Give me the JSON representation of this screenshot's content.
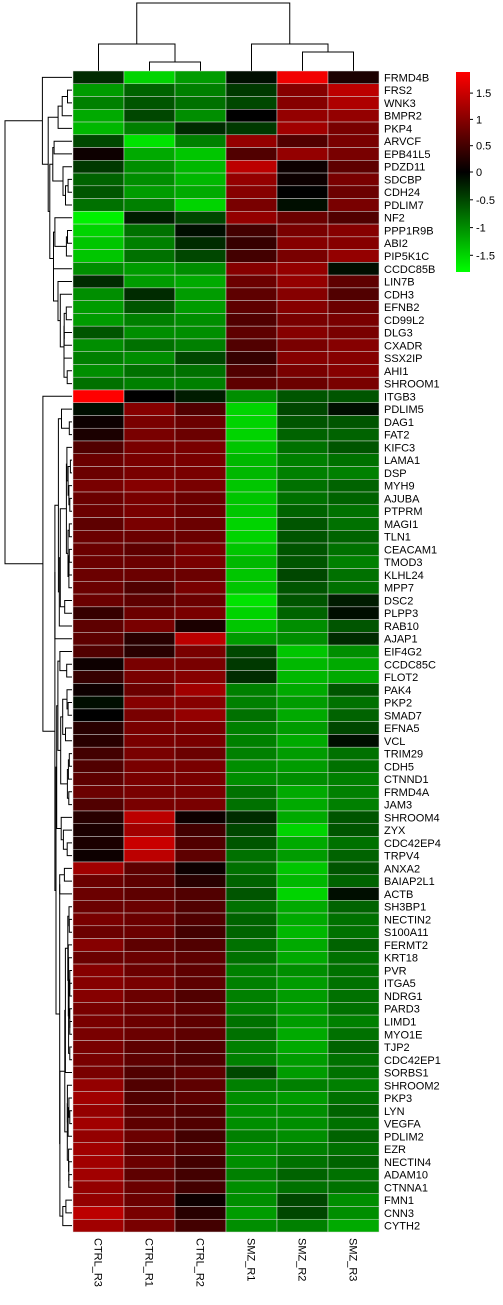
{
  "chart_data": {
    "type": "heatmap",
    "columns": [
      "CTRL_R3",
      "CTRL_R1",
      "CTRL_R2",
      "SMZ_R1",
      "SMZ_R2",
      "SMZ_R3"
    ],
    "rows": [
      "FRMD4B",
      "FRS2",
      "WNK3",
      "BMPR2",
      "PKP4",
      "ARVCF",
      "EPB41L5",
      "PDZD11",
      "SDCBP",
      "CDH24",
      "PDLIM7",
      "NF2",
      "PPP1R9B",
      "ABI2",
      "PIP5K1C",
      "CCDC85B",
      "LIN7B",
      "CDH3",
      "EFNB2",
      "CD99L2",
      "DLG3",
      "CXADR",
      "SSX2IP",
      "AHI1",
      "SHROOM1",
      "ITGB3",
      "PDLIM5",
      "DAG1",
      "FAT2",
      "KIFC3",
      "LAMA1",
      "DSP",
      "MYH9",
      "AJUBA",
      "PTPRM",
      "MAGI1",
      "TLN1",
      "CEACAM1",
      "TMOD3",
      "KLHL24",
      "MPP7",
      "DSC2",
      "PLPP3",
      "RAB10",
      "AJAP1",
      "EIF4G2",
      "CCDC85C",
      "FLOT2",
      "PAK4",
      "PKP2",
      "SMAD7",
      "EFNA5",
      "VCL",
      "TRIM29",
      "CDH5",
      "CTNND1",
      "FRMD4A",
      "JAM3",
      "SHROOM4",
      "ZYX",
      "CDC42EP4",
      "TRPV4",
      "ANXA2",
      "BAIAP2L1",
      "ACTB",
      "SH3BP1",
      "NECTIN2",
      "S100A11",
      "FERMT2",
      "KRT18",
      "PVR",
      "ITGA5",
      "NDRG1",
      "PARD3",
      "LIMD1",
      "MYO1E",
      "TJP2",
      "CDC42EP1",
      "SORBS1",
      "SHROOM2",
      "PKP3",
      "LYN",
      "VEGFA",
      "PDLIM2",
      "EZR",
      "NECTIN4",
      "ADAM10",
      "CTNNA1",
      "FMN1",
      "CNN3",
      "CYTH2"
    ],
    "values": [
      [
        -0.3,
        -1.5,
        -1.1,
        -0.1,
        1.8,
        0.2
      ],
      [
        -1.1,
        -0.7,
        -0.9,
        -0.4,
        1.0,
        1.4
      ],
      [
        -0.9,
        -0.6,
        -0.8,
        -0.5,
        1.0,
        1.3
      ],
      [
        -1.2,
        -0.5,
        -1.0,
        0.0,
        1.1,
        1.1
      ],
      [
        -1.3,
        -0.9,
        -0.3,
        -0.4,
        1.2,
        0.9
      ],
      [
        -0.5,
        -1.6,
        -0.9,
        1.1,
        0.6,
        0.9
      ],
      [
        0.1,
        -1.2,
        -1.4,
        0.6,
        1.1,
        0.9
      ],
      [
        -0.4,
        -1.0,
        -1.3,
        1.4,
        0.1,
        0.7
      ],
      [
        -0.7,
        -1.0,
        -1.3,
        1.1,
        0.1,
        0.9
      ],
      [
        -0.6,
        -1.1,
        -1.2,
        1.0,
        0.0,
        0.8
      ],
      [
        -0.8,
        -0.9,
        -1.5,
        0.9,
        -0.1,
        0.9
      ],
      [
        -1.7,
        -0.2,
        -0.5,
        1.1,
        0.8,
        0.6
      ],
      [
        -1.5,
        -0.8,
        -0.1,
        0.5,
        0.9,
        1.0
      ],
      [
        -1.4,
        -0.9,
        -0.3,
        0.4,
        1.0,
        1.0
      ],
      [
        -1.4,
        -0.8,
        -0.5,
        0.5,
        0.9,
        1.1
      ],
      [
        -1.0,
        -1.1,
        -1.0,
        1.0,
        1.1,
        -0.1
      ],
      [
        -0.3,
        -1.1,
        -1.2,
        0.8,
        1.1,
        0.7
      ],
      [
        -1.0,
        -0.3,
        -1.1,
        0.7,
        1.0,
        0.6
      ],
      [
        -1.1,
        -0.6,
        -1.1,
        0.7,
        1.0,
        0.8
      ],
      [
        -1.1,
        -0.9,
        -1.0,
        0.6,
        0.9,
        0.9
      ],
      [
        -0.6,
        -1.0,
        -1.0,
        0.7,
        1.0,
        0.9
      ],
      [
        -1.0,
        -0.8,
        -0.9,
        0.6,
        0.9,
        1.0
      ],
      [
        -0.9,
        -1.0,
        -0.5,
        0.4,
        1.0,
        1.0
      ],
      [
        -1.0,
        -0.8,
        -0.8,
        0.6,
        0.9,
        1.0
      ],
      [
        -0.8,
        -0.9,
        -0.9,
        0.7,
        0.8,
        0.9
      ],
      [
        1.9,
        0.0,
        -0.2,
        -1.0,
        -0.6,
        -0.6
      ],
      [
        -0.1,
        1.0,
        0.6,
        -1.5,
        -0.5,
        -0.1
      ],
      [
        0.1,
        0.9,
        0.8,
        -1.5,
        -0.6,
        -0.6
      ],
      [
        0.2,
        0.9,
        0.8,
        -1.5,
        -0.7,
        -0.7
      ],
      [
        0.6,
        0.9,
        0.9,
        -1.4,
        -0.8,
        -0.6
      ],
      [
        0.8,
        0.9,
        0.9,
        -1.3,
        -0.9,
        -0.8
      ],
      [
        0.8,
        0.9,
        0.9,
        -1.3,
        -0.9,
        -0.9
      ],
      [
        0.9,
        1.0,
        0.9,
        -1.4,
        -0.8,
        -0.7
      ],
      [
        0.8,
        0.9,
        0.8,
        -1.4,
        -0.8,
        -0.7
      ],
      [
        0.8,
        0.9,
        0.8,
        -1.4,
        -0.7,
        -0.8
      ],
      [
        0.7,
        0.9,
        0.8,
        -1.5,
        -0.6,
        -0.8
      ],
      [
        0.8,
        0.8,
        0.8,
        -1.5,
        -0.6,
        -0.7
      ],
      [
        0.8,
        0.7,
        0.9,
        -1.4,
        -0.6,
        -0.8
      ],
      [
        0.8,
        0.8,
        0.9,
        -1.3,
        -0.6,
        -0.9
      ],
      [
        0.8,
        0.8,
        0.8,
        -1.4,
        -0.5,
        -0.8
      ],
      [
        0.8,
        0.6,
        0.9,
        -1.4,
        -0.6,
        -0.8
      ],
      [
        0.8,
        0.7,
        0.8,
        -1.6,
        -0.6,
        -0.2
      ],
      [
        0.4,
        0.8,
        0.9,
        -1.5,
        -0.7,
        -0.1
      ],
      [
        0.7,
        0.9,
        0.2,
        -1.4,
        -1.0,
        -0.6
      ],
      [
        0.7,
        0.3,
        1.4,
        -1.1,
        -1.0,
        -0.3
      ],
      [
        0.6,
        0.3,
        0.9,
        -0.5,
        -1.4,
        -1.0
      ],
      [
        0.1,
        0.9,
        0.9,
        -0.4,
        -1.3,
        -1.2
      ],
      [
        0.4,
        0.9,
        1.0,
        -0.3,
        -1.3,
        -1.2
      ],
      [
        0.1,
        0.8,
        1.2,
        -0.9,
        -1.2,
        -0.6
      ],
      [
        -0.1,
        1.0,
        1.0,
        -0.9,
        -1.1,
        -0.8
      ],
      [
        0.0,
        0.9,
        1.1,
        -0.8,
        -1.2,
        -0.7
      ],
      [
        0.3,
        0.9,
        0.9,
        -0.9,
        -1.1,
        -0.5
      ],
      [
        0.3,
        0.9,
        0.9,
        -0.9,
        -1.2,
        -0.1
      ],
      [
        0.5,
        0.9,
        0.8,
        -0.9,
        -1.1,
        -0.8
      ],
      [
        0.6,
        0.9,
        0.9,
        -1.0,
        -1.1,
        -0.8
      ],
      [
        0.7,
        0.9,
        0.9,
        -1.0,
        -1.0,
        -0.9
      ],
      [
        0.8,
        0.9,
        0.9,
        -0.8,
        -1.2,
        -0.9
      ],
      [
        0.6,
        0.9,
        0.9,
        -0.8,
        -1.2,
        -0.9
      ],
      [
        0.3,
        1.4,
        0.1,
        -0.3,
        -1.2,
        -0.6
      ],
      [
        0.2,
        1.2,
        0.5,
        -0.5,
        -1.5,
        -0.6
      ],
      [
        0.2,
        1.5,
        0.6,
        -0.6,
        -1.2,
        -0.8
      ],
      [
        0.1,
        1.4,
        0.7,
        -0.8,
        -1.1,
        -0.7
      ],
      [
        1.2,
        0.7,
        0.1,
        -0.8,
        -1.4,
        -0.6
      ],
      [
        0.8,
        0.7,
        0.3,
        -0.7,
        -1.3,
        -0.7
      ],
      [
        0.8,
        0.7,
        0.6,
        -0.6,
        -1.5,
        -0.1
      ],
      [
        0.8,
        0.8,
        0.6,
        -0.8,
        -1.2,
        -0.7
      ],
      [
        0.9,
        0.8,
        0.6,
        -0.7,
        -1.2,
        -0.8
      ],
      [
        0.8,
        0.8,
        0.5,
        -0.7,
        -1.3,
        -0.8
      ],
      [
        1.0,
        0.7,
        0.6,
        -0.8,
        -1.2,
        -0.7
      ],
      [
        0.8,
        0.8,
        0.7,
        -0.8,
        -1.2,
        -0.8
      ],
      [
        1.0,
        0.8,
        0.7,
        -0.9,
        -1.0,
        -0.8
      ],
      [
        1.0,
        0.9,
        0.7,
        -0.9,
        -1.1,
        -0.8
      ],
      [
        1.0,
        0.8,
        0.6,
        -0.9,
        -1.1,
        -0.8
      ],
      [
        0.9,
        0.8,
        0.7,
        -0.9,
        -1.1,
        -0.8
      ],
      [
        0.9,
        0.8,
        0.7,
        -0.8,
        -1.1,
        -0.9
      ],
      [
        0.9,
        0.8,
        0.7,
        -0.8,
        -1.2,
        -0.8
      ],
      [
        0.9,
        0.7,
        0.6,
        -0.9,
        -1.2,
        -0.7
      ],
      [
        0.9,
        0.7,
        0.6,
        -0.9,
        -1.1,
        -0.8
      ],
      [
        0.9,
        0.6,
        0.7,
        -0.5,
        -1.1,
        -0.8
      ],
      [
        1.1,
        0.6,
        0.7,
        -0.9,
        -0.9,
        -0.9
      ],
      [
        1.2,
        0.6,
        0.7,
        -1.0,
        -1.1,
        -0.8
      ],
      [
        1.1,
        0.7,
        0.6,
        -1.0,
        -1.0,
        -0.7
      ],
      [
        1.2,
        0.7,
        0.6,
        -1.0,
        -1.0,
        -0.8
      ],
      [
        1.1,
        0.8,
        0.5,
        -0.9,
        -1.0,
        -0.7
      ],
      [
        1.2,
        0.7,
        0.6,
        -1.0,
        -0.9,
        -0.8
      ],
      [
        1.2,
        0.8,
        0.5,
        -1.0,
        -0.8,
        -0.7
      ],
      [
        1.2,
        0.7,
        0.5,
        -0.9,
        -0.7,
        -0.8
      ],
      [
        1.1,
        0.8,
        0.5,
        -1.0,
        -0.8,
        -0.8
      ],
      [
        1.1,
        0.8,
        0.1,
        -1.0,
        -0.5,
        -1.0
      ],
      [
        1.4,
        0.9,
        0.3,
        -1.1,
        -0.5,
        -1.0
      ],
      [
        1.2,
        0.9,
        0.5,
        -1.0,
        -0.9,
        -1.2
      ]
    ],
    "color_scale": {
      "min": -1.8,
      "mid": 0,
      "max": 1.9,
      "low_color": "#00ff00",
      "mid_color": "#000000",
      "high_color": "#ff0000",
      "ticks": [
        1.5,
        1,
        0.5,
        0,
        -0.5,
        -1,
        -1.5
      ],
      "tick_labels": [
        "1.5",
        "1",
        "0.5",
        "0",
        "-0.5",
        "-1",
        "-1.5"
      ]
    },
    "column_dendrogram": true,
    "row_dendrogram": true,
    "title": "",
    "xlabel": "",
    "ylabel": ""
  }
}
